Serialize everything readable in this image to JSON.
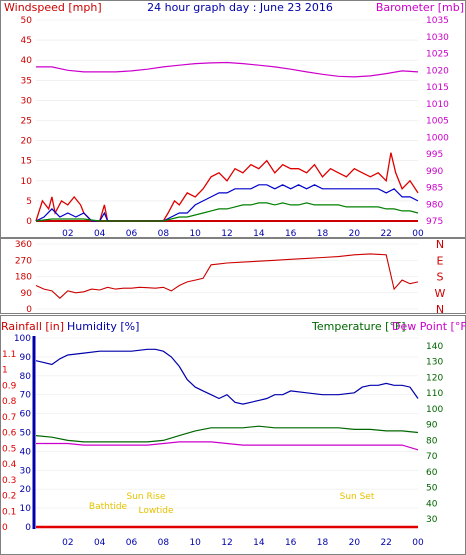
{
  "title": "24 hour graph day : June 23 2016",
  "colors": {
    "wind": "#e00000",
    "gust": "#e00000",
    "avgwind": "#0000cc",
    "avgwind2": "#008000",
    "barometer": "#cc00cc",
    "wind_dir": "#cc0000",
    "rain": "#e00000",
    "humidity": "#0000aa",
    "temperature": "#006600",
    "dewpoint": "#cc00cc",
    "frame": "#808080",
    "axis_left": "#cc0000",
    "axis_right_top": "#cc00cc",
    "hum_axis": "#0000aa",
    "temp_axis": "#006600",
    "sun": "#e6c200"
  },
  "chart_data": [
    {
      "type": "line",
      "panel": "wind_barometer",
      "left_axis_label": "Windspeed [mph]",
      "right_axis_label": "Barometer [mb]",
      "x_ticks": [
        "02",
        "04",
        "06",
        "08",
        "10",
        "12",
        "14",
        "16",
        "18",
        "20",
        "22",
        "00"
      ],
      "left_ticks": [
        "0",
        "5",
        "10",
        "15",
        "20",
        "25",
        "30",
        "35",
        "40",
        "45",
        "50"
      ],
      "left_range": [
        0,
        50
      ],
      "right_ticks": [
        "975",
        "980",
        "985",
        "990",
        "995",
        "1000",
        "1005",
        "1010",
        "1015",
        "1020",
        "1025",
        "1030",
        "1035"
      ],
      "right_range": [
        975,
        1035
      ],
      "series": [
        {
          "key": "gust",
          "x": [
            0,
            0.4,
            0.8,
            1,
            1.2,
            1.6,
            2,
            2.4,
            2.8,
            3,
            3.5,
            4,
            4.3,
            4.5,
            5,
            6,
            7,
            8,
            8.3,
            8.7,
            9,
            9.5,
            10,
            10.5,
            11,
            11.5,
            12,
            12.5,
            13,
            13.5,
            14,
            14.5,
            15,
            15.5,
            16,
            16.5,
            17,
            17.5,
            18,
            18.5,
            19,
            19.5,
            20,
            20.5,
            21,
            21.5,
            22,
            22.3,
            22.6,
            23,
            23.5,
            24
          ],
          "y": [
            0,
            5,
            3,
            6,
            2,
            5,
            4,
            6,
            4,
            2,
            0,
            0,
            4,
            0,
            0,
            0,
            0,
            0,
            2,
            5,
            4,
            7,
            6,
            8,
            11,
            12,
            10,
            13,
            12,
            14,
            13,
            15,
            12,
            14,
            13,
            13,
            12,
            14,
            11,
            13,
            12,
            11,
            13,
            12,
            11,
            12,
            10,
            17,
            12,
            8,
            10,
            7
          ]
        },
        {
          "key": "avgwind",
          "x": [
            0,
            0.5,
            1,
            1.5,
            2,
            2.5,
            3,
            3.5,
            4,
            4.3,
            4.5,
            5,
            6,
            7,
            8,
            8.5,
            9,
            9.5,
            10,
            10.5,
            11,
            11.5,
            12,
            12.5,
            13,
            13.5,
            14,
            14.5,
            15,
            15.5,
            16,
            16.5,
            17,
            17.5,
            18,
            18.5,
            19,
            19.5,
            20,
            20.5,
            21,
            21.5,
            22,
            22.5,
            23,
            23.5,
            24
          ],
          "y": [
            0,
            1,
            3,
            1,
            2,
            1,
            2,
            0,
            0,
            2,
            0,
            0,
            0,
            0,
            0,
            1,
            2,
            2,
            4,
            5,
            6,
            7,
            7,
            8,
            8,
            8,
            9,
            9,
            8,
            9,
            8,
            9,
            8,
            9,
            8,
            8,
            8,
            8,
            8,
            8,
            8,
            8,
            7,
            8,
            6,
            6,
            5
          ]
        },
        {
          "key": "avgwind2",
          "x": [
            0,
            1,
            2,
            3,
            4,
            5,
            6,
            7,
            8,
            8.5,
            9,
            9.5,
            10,
            10.5,
            11,
            11.5,
            12,
            12.5,
            13,
            13.5,
            14,
            14.5,
            15,
            15.5,
            16,
            16.5,
            17,
            17.5,
            18,
            18.5,
            19,
            19.5,
            20,
            20.5,
            21,
            21.5,
            22,
            22.5,
            23,
            23.5,
            24
          ],
          "y": [
            0,
            0.5,
            0.5,
            0.5,
            0,
            0,
            0,
            0,
            0,
            0.5,
            1,
            1,
            1.5,
            2,
            2.5,
            3,
            3,
            3.5,
            4,
            4,
            4.5,
            4.5,
            4,
            4.5,
            4,
            4,
            4.5,
            4,
            4,
            4,
            4,
            3.5,
            3.5,
            3.5,
            3.5,
            3.5,
            3,
            3,
            2.5,
            2.5,
            2
          ]
        },
        {
          "key": "barometer",
          "x": [
            0,
            1,
            2,
            3,
            4,
            5,
            6,
            7,
            8,
            9,
            10,
            11,
            12,
            13,
            14,
            15,
            16,
            17,
            18,
            19,
            20,
            21,
            22,
            23,
            24
          ],
          "y": [
            1021,
            1021,
            1020,
            1019.5,
            1019.5,
            1019.5,
            1019.8,
            1020.3,
            1021,
            1021.5,
            1022,
            1022.2,
            1022.3,
            1022,
            1021.5,
            1021,
            1020.3,
            1019.5,
            1018.8,
            1018.2,
            1018,
            1018.3,
            1019,
            1019.8,
            1019.5
          ]
        }
      ]
    },
    {
      "type": "line",
      "panel": "wind_direction",
      "left_ticks": [
        "0",
        "90",
        "180",
        "270",
        "360"
      ],
      "left_range": [
        0,
        360
      ],
      "right_ticks": [
        "N",
        "W",
        "S",
        "E",
        "N"
      ],
      "series": [
        {
          "key": "wind_dir",
          "x": [
            0,
            0.5,
            1,
            1.5,
            2,
            2.5,
            3,
            3.5,
            4,
            4.5,
            5,
            5.5,
            6,
            6.5,
            7,
            7.5,
            8,
            8.5,
            9,
            9.5,
            10,
            10.5,
            11,
            11.5,
            12,
            13,
            14,
            15,
            16,
            17,
            18,
            19,
            20,
            21,
            22,
            22.5,
            23,
            23.5,
            24
          ],
          "y": [
            130,
            110,
            100,
            60,
            100,
            90,
            95,
            110,
            105,
            120,
            110,
            115,
            115,
            120,
            118,
            115,
            120,
            100,
            130,
            150,
            160,
            170,
            245,
            250,
            255,
            260,
            265,
            270,
            275,
            280,
            285,
            290,
            300,
            305,
            300,
            110,
            160,
            140,
            150
          ]
        }
      ]
    },
    {
      "type": "line",
      "panel": "rain_humidity_temperature",
      "rain_label": "Rainfall [in]",
      "humidity_label": "Humidity [%]",
      "temp_label": "Temperature [°F]",
      "dew_label": "Dew Point [°F]",
      "x_ticks": [
        "02",
        "04",
        "06",
        "08",
        "10",
        "12",
        "14",
        "16",
        "18",
        "20",
        "22",
        "00"
      ],
      "rain_ticks": [
        "0",
        "0.1",
        "0.2",
        "0.3",
        "0.4",
        "0.5",
        "0.6",
        "0.7",
        "0.8",
        "0.9",
        "1",
        "1.1"
      ],
      "rain_range": [
        0,
        1.2
      ],
      "humidity_ticks": [
        "0",
        "10",
        "20",
        "30",
        "40",
        "50",
        "60",
        "70",
        "80",
        "90",
        "100"
      ],
      "humidity_range": [
        0,
        100
      ],
      "temp_ticks": [
        "30",
        "40",
        "50",
        "60",
        "70",
        "80",
        "90",
        "100",
        "110",
        "120",
        "130",
        "140"
      ],
      "temp_range": [
        25,
        145
      ],
      "annotations": [
        "Bathtide",
        "Sun Rise",
        "Lowtide",
        "Sun Set"
      ],
      "series": [
        {
          "key": "rain",
          "x": [
            0,
            24
          ],
          "y": [
            0,
            0
          ]
        },
        {
          "key": "humidity",
          "x": [
            0,
            0.5,
            1,
            1.5,
            2,
            3,
            4,
            5,
            6,
            7,
            7.5,
            8,
            8.5,
            9,
            9.5,
            10,
            10.5,
            11,
            11.5,
            12,
            12.5,
            13,
            13.5,
            14,
            14.5,
            15,
            15.5,
            16,
            17,
            18,
            19,
            20,
            20.5,
            21,
            21.5,
            22,
            22.5,
            23,
            23.5,
            24
          ],
          "y": [
            88,
            87,
            86,
            89,
            91,
            92,
            93,
            93,
            93,
            94,
            94,
            93,
            90,
            85,
            78,
            74,
            72,
            70,
            68,
            70,
            66,
            65,
            66,
            67,
            68,
            70,
            70,
            72,
            71,
            70,
            70,
            71,
            74,
            75,
            75,
            76,
            75,
            75,
            74,
            68
          ]
        },
        {
          "key": "temperature",
          "x": [
            0,
            1,
            2,
            3,
            4,
            5,
            6,
            7,
            8,
            9,
            10,
            11,
            12,
            13,
            14,
            15,
            16,
            17,
            18,
            19,
            20,
            21,
            22,
            23,
            24
          ],
          "y": [
            83,
            82,
            80,
            79,
            79,
            79,
            79,
            79,
            80,
            83,
            86,
            88,
            88,
            88,
            89,
            88,
            88,
            88,
            88,
            88,
            87,
            87,
            86,
            86,
            85
          ]
        },
        {
          "key": "dewpoint",
          "x": [
            0,
            1,
            2,
            3,
            4,
            5,
            6,
            7,
            8,
            9,
            10,
            11,
            12,
            13,
            14,
            15,
            16,
            17,
            18,
            19,
            20,
            21,
            22,
            23,
            24
          ],
          "y": [
            78,
            78,
            78,
            77,
            77,
            77,
            77,
            77,
            78,
            79,
            79,
            79,
            78,
            77,
            77,
            77,
            77,
            77,
            77,
            77,
            77,
            77,
            77,
            77,
            74
          ]
        }
      ]
    }
  ]
}
